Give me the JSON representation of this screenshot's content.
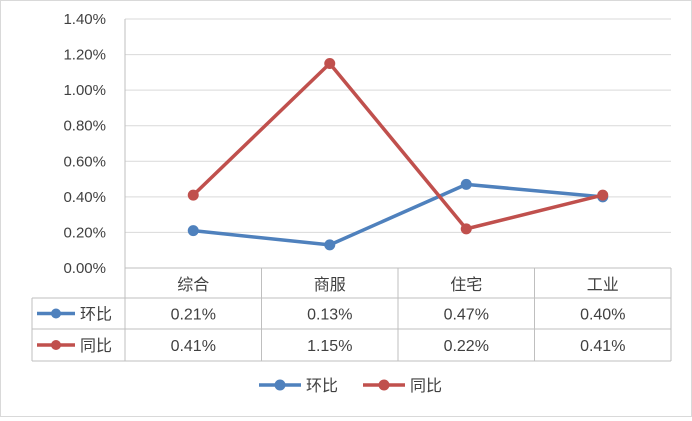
{
  "chart_data": {
    "type": "line",
    "categories": [
      "综合",
      "商服",
      "住宅",
      "工业"
    ],
    "series": [
      {
        "name": "环比",
        "values": [
          0.0021,
          0.0013,
          0.0047,
          0.004
        ],
        "labels": [
          "0.21%",
          "0.13%",
          "0.47%",
          "0.40%"
        ],
        "color": "#4f81bd"
      },
      {
        "name": "同比",
        "values": [
          0.0041,
          0.0115,
          0.0022,
          0.0041
        ],
        "labels": [
          "0.41%",
          "1.15%",
          "0.22%",
          "0.41%"
        ],
        "color": "#c0504d"
      }
    ],
    "ylim": [
      0,
      0.014
    ],
    "yticks": [
      "0.00%",
      "0.20%",
      "0.40%",
      "0.60%",
      "0.80%",
      "1.00%",
      "1.20%",
      "1.40%"
    ],
    "grid": true,
    "data_table": true,
    "legend": "bottom"
  }
}
